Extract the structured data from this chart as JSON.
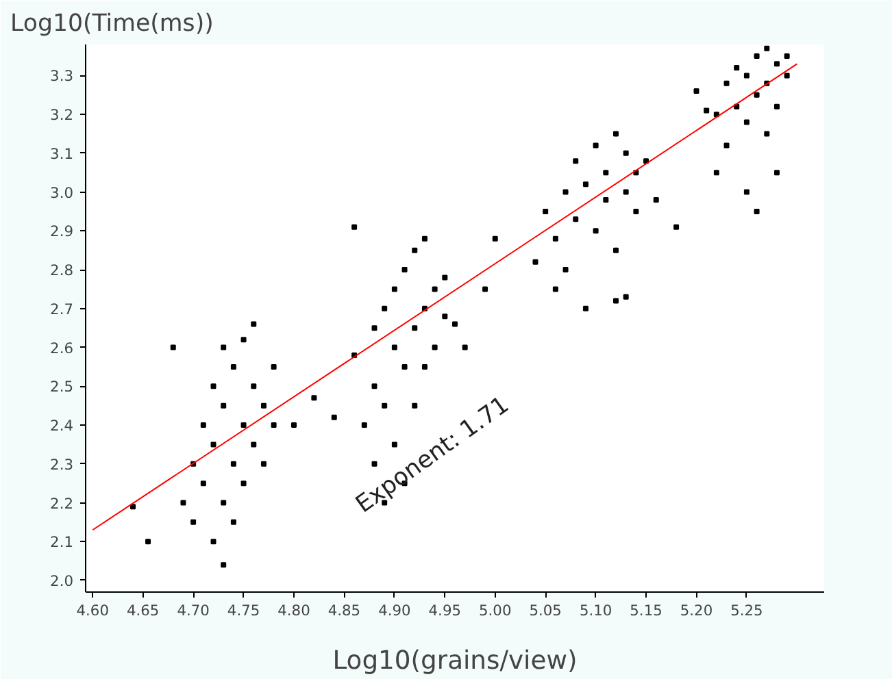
{
  "chart_data": {
    "type": "scatter",
    "xlabel": "Log10(grains/view)",
    "ylabel": "Log10(Time(ms))",
    "xlim": [
      4.593,
      5.327
    ],
    "ylim": [
      1.97,
      3.38
    ],
    "xticks": [
      {
        "value": 4.6,
        "label": "4.60"
      },
      {
        "value": 4.65,
        "label": "4.65"
      },
      {
        "value": 4.7,
        "label": "4.70"
      },
      {
        "value": 4.75,
        "label": "4.75"
      },
      {
        "value": 4.8,
        "label": "4.80"
      },
      {
        "value": 4.85,
        "label": "4.85"
      },
      {
        "value": 4.9,
        "label": "4.90"
      },
      {
        "value": 4.95,
        "label": "4.95"
      },
      {
        "value": 5.0,
        "label": "5.00"
      },
      {
        "value": 5.05,
        "label": "5.05"
      },
      {
        "value": 5.1,
        "label": "5.10"
      },
      {
        "value": 5.15,
        "label": "5.15"
      },
      {
        "value": 5.2,
        "label": "5.20"
      },
      {
        "value": 5.25,
        "label": "5.25"
      }
    ],
    "yticks": [
      {
        "value": 2.0,
        "label": "2.0"
      },
      2.1,
      2.2,
      2.3,
      2.4,
      2.5,
      2.6,
      2.7,
      2.8,
      2.9,
      {
        "value": 3.0,
        "label": "3.0"
      },
      3.1,
      3.2,
      3.3
    ],
    "grid": false,
    "annotations": [
      "Exponent: 1.71"
    ],
    "series": [
      {
        "color": "#000000",
        "marker": "square",
        "x": [
          4.64,
          4.655,
          4.68,
          4.69,
          4.7,
          4.7,
          4.71,
          4.71,
          4.72,
          4.72,
          4.72,
          4.73,
          4.73,
          4.73,
          4.73,
          4.74,
          4.74,
          4.74,
          4.75,
          4.75,
          4.75,
          4.76,
          4.76,
          4.76,
          4.77,
          4.77,
          4.78,
          4.78,
          4.8,
          4.82,
          4.84,
          4.86,
          4.86,
          4.87,
          4.88,
          4.88,
          4.88,
          4.89,
          4.89,
          4.89,
          4.9,
          4.9,
          4.9,
          4.91,
          4.91,
          4.91,
          4.92,
          4.92,
          4.92,
          4.93,
          4.93,
          4.93,
          4.94,
          4.94,
          4.95,
          4.95,
          4.96,
          4.97,
          4.99,
          5.0,
          5.04,
          5.05,
          5.06,
          5.06,
          5.07,
          5.07,
          5.08,
          5.08,
          5.09,
          5.09,
          5.1,
          5.1,
          5.11,
          5.11,
          5.12,
          5.12,
          5.13,
          5.13,
          5.14,
          5.14,
          5.15,
          5.16,
          5.18,
          5.13,
          5.12,
          5.2,
          5.22,
          5.22,
          5.23,
          5.23,
          5.24,
          5.24,
          5.25,
          5.25,
          5.25,
          5.26,
          5.26,
          5.26,
          5.27,
          5.27,
          5.28,
          5.28,
          5.28,
          5.29,
          5.29,
          5.27,
          5.21
        ],
        "values": [
          2.19,
          2.1,
          2.6,
          2.2,
          2.15,
          2.3,
          2.25,
          2.4,
          2.1,
          2.35,
          2.5,
          2.04,
          2.2,
          2.45,
          2.6,
          2.3,
          2.55,
          2.15,
          2.4,
          2.62,
          2.25,
          2.35,
          2.5,
          2.66,
          2.45,
          2.3,
          2.55,
          2.4,
          2.4,
          2.47,
          2.42,
          2.91,
          2.58,
          2.4,
          2.3,
          2.5,
          2.65,
          2.2,
          2.45,
          2.7,
          2.35,
          2.6,
          2.75,
          2.55,
          2.8,
          2.25,
          2.65,
          2.85,
          2.45,
          2.7,
          2.88,
          2.55,
          2.75,
          2.6,
          2.68,
          2.78,
          2.66,
          2.6,
          2.75,
          2.88,
          2.82,
          2.95,
          2.75,
          2.88,
          3.0,
          2.8,
          2.93,
          3.08,
          2.7,
          3.02,
          2.9,
          3.12,
          2.98,
          3.05,
          2.85,
          3.15,
          3.0,
          3.1,
          2.95,
          3.05,
          3.08,
          2.98,
          2.91,
          2.73,
          2.72,
          3.26,
          3.05,
          3.2,
          3.28,
          3.12,
          3.22,
          3.32,
          3.0,
          3.18,
          3.3,
          2.95,
          3.25,
          3.35,
          3.15,
          3.28,
          3.22,
          3.33,
          3.05,
          3.3,
          3.35,
          3.37,
          3.21
        ]
      },
      {
        "type": "line",
        "color": "#ff0000",
        "x": [
          4.6,
          5.3
        ],
        "values": [
          2.13,
          3.33
        ]
      }
    ]
  }
}
